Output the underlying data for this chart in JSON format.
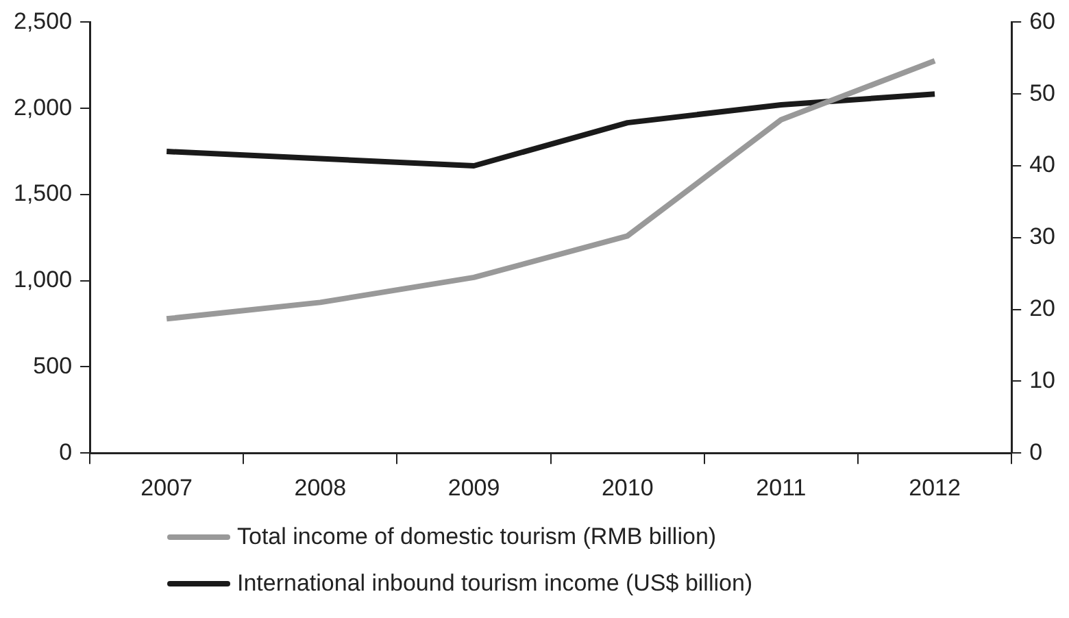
{
  "chart_data": {
    "type": "line",
    "categories": [
      "2007",
      "2008",
      "2009",
      "2010",
      "2011",
      "2012"
    ],
    "series": [
      {
        "name": "Total income of domestic tourism (RMB billion)",
        "color": "#999999",
        "values": [
          779,
          874,
          1019,
          1260,
          1934,
          2276
        ]
      },
      {
        "name": "International inbound tourism income (US$ billion)",
        "color": "#1a1a1a",
        "values": [
          42,
          41,
          40,
          46,
          48.5,
          50
        ],
        "axis": "y2"
      }
    ],
    "ylim": [
      0,
      2500
    ],
    "yticks": [
      0,
      500,
      {
        "value": 1000,
        "label": "1,000"
      },
      {
        "value": 1500,
        "label": "1,500"
      },
      {
        "value": 2000,
        "label": "2,000"
      },
      {
        "value": 2500,
        "label": "2,500"
      }
    ],
    "y2lim": [
      0,
      60
    ],
    "y2ticks": [
      0,
      10,
      20,
      30,
      40,
      50,
      60
    ],
    "grid": false,
    "legend": "bottom",
    "marker": "none",
    "line_style": "solid"
  }
}
